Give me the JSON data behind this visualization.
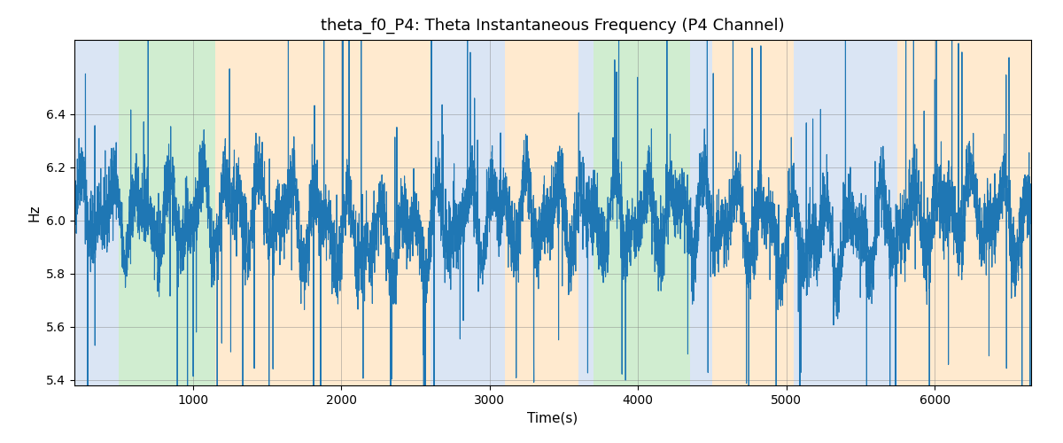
{
  "title": "theta_f0_P4: Theta Instantaneous Frequency (P4 Channel)",
  "xlabel": "Time(s)",
  "ylabel": "Hz",
  "line_color": "#1f77b4",
  "line_width": 0.8,
  "bg_regions": [
    {
      "start": 200,
      "end": 500,
      "color": "#aec6e8",
      "alpha": 0.45
    },
    {
      "start": 500,
      "end": 1150,
      "color": "#98d898",
      "alpha": 0.45
    },
    {
      "start": 1150,
      "end": 2600,
      "color": "#ffd9a8",
      "alpha": 0.55
    },
    {
      "start": 2600,
      "end": 3100,
      "color": "#aec6e8",
      "alpha": 0.45
    },
    {
      "start": 3100,
      "end": 3600,
      "color": "#ffd9a8",
      "alpha": 0.55
    },
    {
      "start": 3600,
      "end": 3700,
      "color": "#aec6e8",
      "alpha": 0.45
    },
    {
      "start": 3700,
      "end": 4350,
      "color": "#98d898",
      "alpha": 0.45
    },
    {
      "start": 4350,
      "end": 4500,
      "color": "#aec6e8",
      "alpha": 0.45
    },
    {
      "start": 4500,
      "end": 5050,
      "color": "#ffd9a8",
      "alpha": 0.55
    },
    {
      "start": 5050,
      "end": 5750,
      "color": "#aec6e8",
      "alpha": 0.45
    },
    {
      "start": 5750,
      "end": 6700,
      "color": "#ffd9a8",
      "alpha": 0.55
    }
  ],
  "ylim": [
    5.38,
    6.68
  ],
  "xlim": [
    200,
    6650
  ],
  "yticks": [
    5.4,
    5.6,
    5.8,
    6.0,
    6.2,
    6.4
  ],
  "xticks": [
    1000,
    2000,
    3000,
    4000,
    5000,
    6000
  ],
  "seed": 42,
  "n_points": 6500,
  "time_start": 200,
  "time_end": 6650,
  "base_freq": 6.0,
  "figsize": [
    12.0,
    5.0
  ],
  "dpi": 100
}
